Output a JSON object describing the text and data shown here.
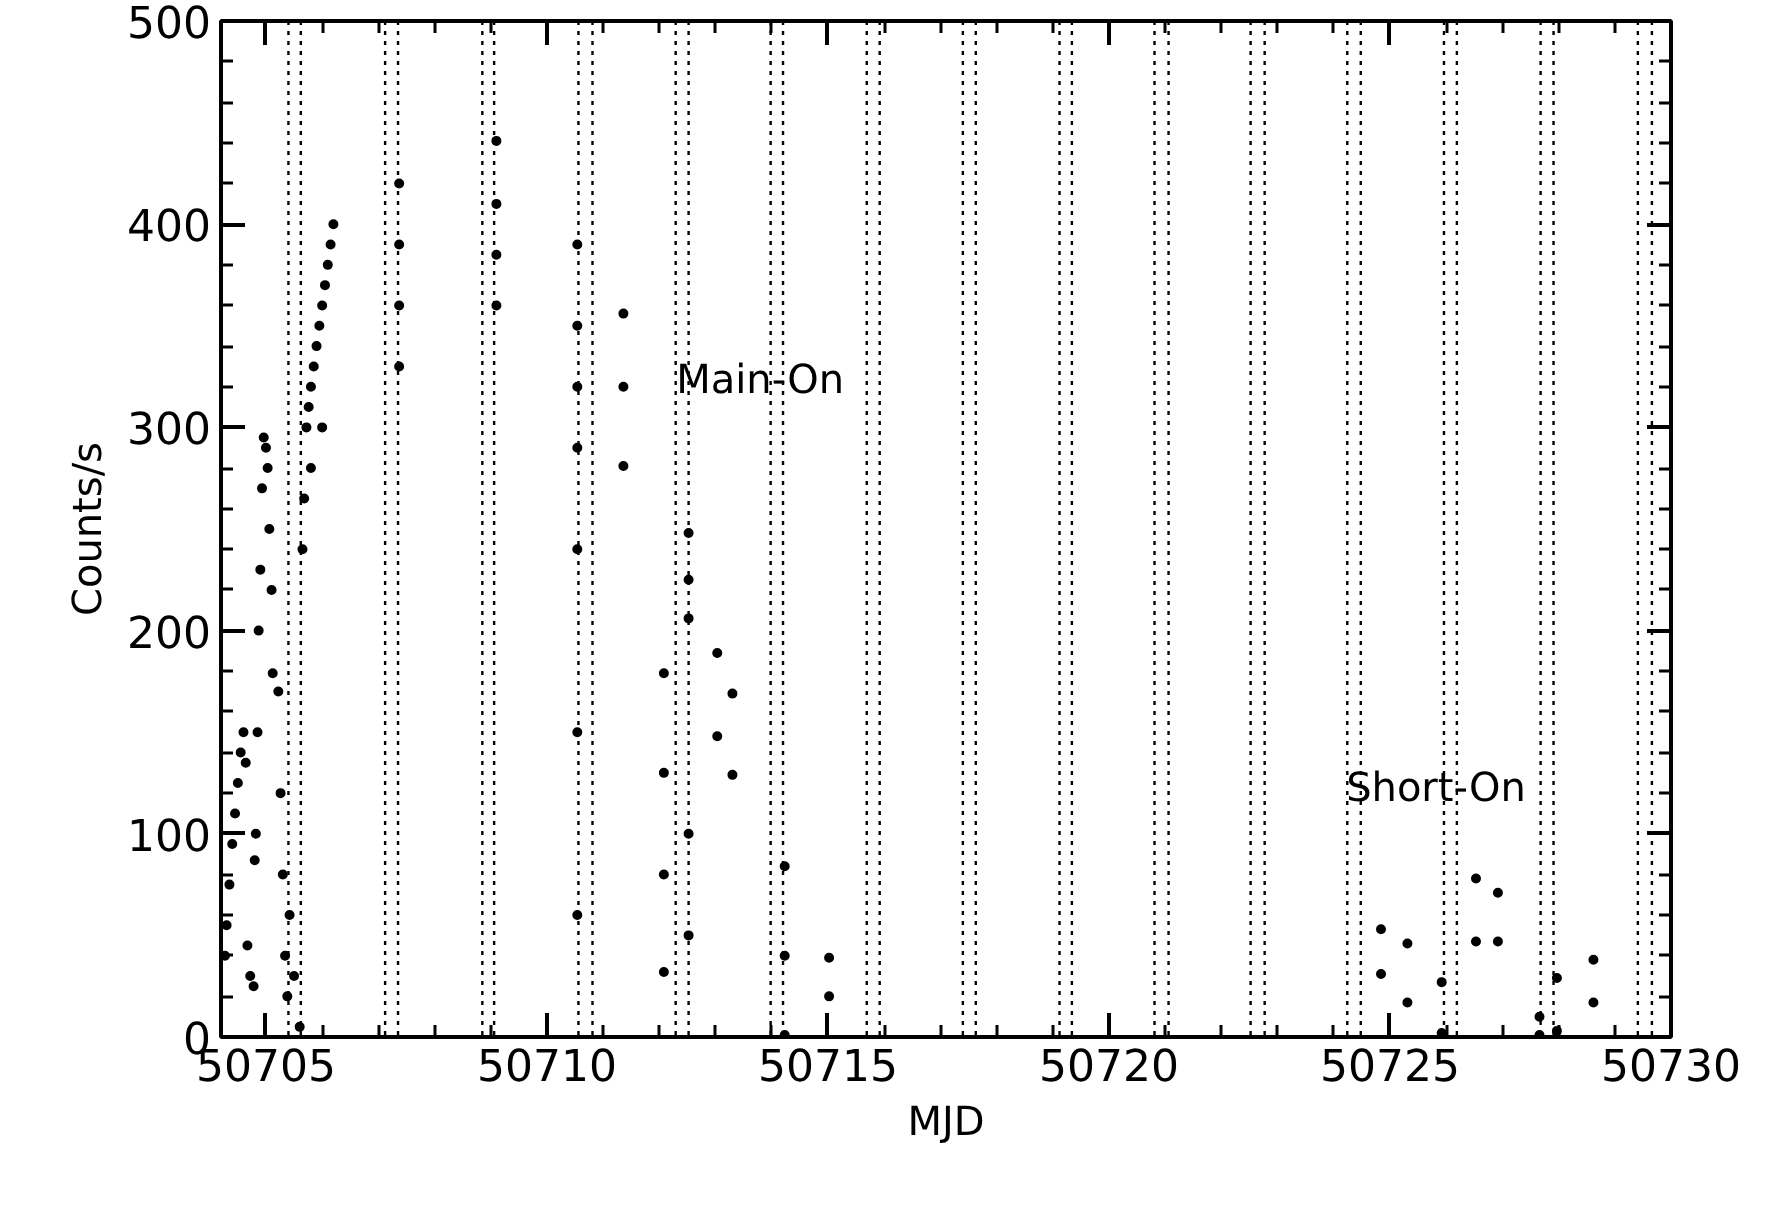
{
  "chart_data": {
    "type": "scatter",
    "xlabel": "MJD",
    "ylabel": "Counts/s",
    "xlim": [
      50704.2,
      50730
    ],
    "ylim": [
      0,
      500
    ],
    "xticks": [
      50705,
      50710,
      50715,
      50720,
      50725,
      50730,
      {
        "value": 50706,
        "label": null
      },
      {
        "value": 50707,
        "label": null
      },
      {
        "value": 50708,
        "label": null
      },
      {
        "value": 50709,
        "label": null
      },
      {
        "value": 50711,
        "label": null
      },
      {
        "value": 50712,
        "label": null
      },
      {
        "value": 50713,
        "label": null
      },
      {
        "value": 50714,
        "label": null
      },
      {
        "value": 50716,
        "label": null
      },
      {
        "value": 50717,
        "label": null
      },
      {
        "value": 50718,
        "label": null
      },
      {
        "value": 50719,
        "label": null
      },
      {
        "value": 50721,
        "label": null
      },
      {
        "value": 50722,
        "label": null
      },
      {
        "value": 50723,
        "label": null
      },
      {
        "value": 50724,
        "label": null
      },
      {
        "value": 50726,
        "label": null
      },
      {
        "value": 50727,
        "label": null
      },
      {
        "value": 50728,
        "label": null
      },
      {
        "value": 50729,
        "label": null
      }
    ],
    "yticks": [
      0,
      100,
      200,
      300,
      400,
      500,
      {
        "value": 20,
        "label": null
      },
      {
        "value": 40,
        "label": null
      },
      {
        "value": 60,
        "label": null
      },
      {
        "value": 80,
        "label": null
      },
      {
        "value": 120,
        "label": null
      },
      {
        "value": 140,
        "label": null
      },
      {
        "value": 160,
        "label": null
      },
      {
        "value": 180,
        "label": null
      },
      {
        "value": 220,
        "label": null
      },
      {
        "value": 240,
        "label": null
      },
      {
        "value": 260,
        "label": null
      },
      {
        "value": 280,
        "label": null
      },
      {
        "value": 320,
        "label": null
      },
      {
        "value": 340,
        "label": null
      },
      {
        "value": 360,
        "label": null
      },
      {
        "value": 380,
        "label": null
      },
      {
        "value": 420,
        "label": null
      },
      {
        "value": 440,
        "label": null
      },
      {
        "value": 460,
        "label": null
      },
      {
        "value": 480,
        "label": null
      }
    ],
    "grid": false,
    "marker": "circle",
    "series": [
      {
        "color": "#000000",
        "x": [
          50704.27,
          50704.3,
          50704.35,
          50704.4,
          50704.45,
          50704.5,
          50704.55,
          50704.6,
          50704.64,
          50704.67,
          50704.72,
          50704.78,
          50704.8,
          50704.82,
          50704.85,
          50704.87,
          50704.9,
          50704.93,
          50704.96,
          50705.0,
          50705.03,
          50705.06,
          50705.1,
          50705.12,
          50705.22,
          50705.26,
          50705.3,
          50705.34,
          50705.38,
          50705.42,
          50705.5,
          50705.6,
          50705.65,
          50705.68,
          50705.72,
          50705.76,
          50705.8,
          50705.85,
          50705.9,
          50705.95,
          50706.0,
          50706.05,
          50706.1,
          50706.15,
          50706.2,
          50705.8,
          50706.0,
          50707.37,
          50707.37,
          50707.37,
          50707.37,
          50709.1,
          50709.1,
          50709.1,
          50709.1,
          50710.54,
          50710.54,
          50710.54,
          50710.54,
          50710.54,
          50710.54,
          50710.54,
          50711.36,
          50711.36,
          50711.36,
          50712.08,
          50712.08,
          50712.08,
          50712.08,
          50712.52,
          50712.52,
          50712.52,
          50712.52,
          50712.52,
          50713.03,
          50713.03,
          50713.3,
          50713.3,
          50714.23,
          50714.23,
          50714.23,
          50715.02,
          50715.02,
          50724.84,
          50724.84,
          50725.31,
          50725.31,
          50725.92,
          50725.92,
          50726.53,
          50726.53,
          50726.92,
          50726.92,
          50727.66,
          50727.66,
          50727.97,
          50727.97,
          50728.62,
          50728.62
        ],
        "values": [
          40,
          55,
          75,
          95,
          110,
          125,
          140,
          150,
          135,
          45,
          30,
          25,
          87,
          100,
          150,
          200,
          230,
          270,
          295,
          290,
          280,
          250,
          220,
          179,
          170,
          120,
          80,
          40,
          20,
          60,
          30,
          5,
          240,
          265,
          300,
          310,
          320,
          330,
          340,
          350,
          360,
          370,
          380,
          390,
          400,
          280,
          300,
          420,
          390,
          360,
          330,
          441,
          410,
          385,
          360,
          390,
          350,
          320,
          290,
          240,
          150,
          60,
          356,
          320,
          281,
          179,
          130,
          80,
          32,
          248,
          225,
          206,
          100,
          50,
          189,
          148,
          169,
          129,
          84,
          40,
          1,
          39,
          20,
          53,
          31,
          46,
          17,
          27,
          2,
          78,
          47,
          71,
          47,
          10,
          1,
          29,
          3,
          38,
          17
        ]
      }
    ],
    "ref_lines": [
      {
        "axis": "x",
        "value": 50705.4,
        "color": "#000000",
        "line_style": "dotted"
      },
      {
        "axis": "x",
        "value": 50705.62,
        "color": "#000000",
        "line_style": "dotted"
      },
      {
        "axis": "x",
        "value": 50707.12,
        "color": "#000000",
        "line_style": "dotted"
      },
      {
        "axis": "x",
        "value": 50707.35,
        "color": "#000000",
        "line_style": "dotted"
      },
      {
        "axis": "x",
        "value": 50708.85,
        "color": "#000000",
        "line_style": "dotted"
      },
      {
        "axis": "x",
        "value": 50709.06,
        "color": "#000000",
        "line_style": "dotted"
      },
      {
        "axis": "x",
        "value": 50710.56,
        "color": "#000000",
        "line_style": "dotted"
      },
      {
        "axis": "x",
        "value": 50710.81,
        "color": "#000000",
        "line_style": "dotted"
      },
      {
        "axis": "x",
        "value": 50712.29,
        "color": "#000000",
        "line_style": "dotted"
      },
      {
        "axis": "x",
        "value": 50712.52,
        "color": "#000000",
        "line_style": "dotted"
      },
      {
        "axis": "x",
        "value": 50713.98,
        "color": "#000000",
        "line_style": "dotted"
      },
      {
        "axis": "x",
        "value": 50714.2,
        "color": "#000000",
        "line_style": "dotted"
      },
      {
        "axis": "x",
        "value": 50715.69,
        "color": "#000000",
        "line_style": "dotted"
      },
      {
        "axis": "x",
        "value": 50715.92,
        "color": "#000000",
        "line_style": "dotted"
      },
      {
        "axis": "x",
        "value": 50717.4,
        "color": "#000000",
        "line_style": "dotted"
      },
      {
        "axis": "x",
        "value": 50717.63,
        "color": "#000000",
        "line_style": "dotted"
      },
      {
        "axis": "x",
        "value": 50719.12,
        "color": "#000000",
        "line_style": "dotted"
      },
      {
        "axis": "x",
        "value": 50719.34,
        "color": "#000000",
        "line_style": "dotted"
      },
      {
        "axis": "x",
        "value": 50720.81,
        "color": "#000000",
        "line_style": "dotted"
      },
      {
        "axis": "x",
        "value": 50721.06,
        "color": "#000000",
        "line_style": "dotted"
      },
      {
        "axis": "x",
        "value": 50722.52,
        "color": "#000000",
        "line_style": "dotted"
      },
      {
        "axis": "x",
        "value": 50722.77,
        "color": "#000000",
        "line_style": "dotted"
      },
      {
        "axis": "x",
        "value": 50724.24,
        "color": "#000000",
        "line_style": "dotted"
      },
      {
        "axis": "x",
        "value": 50724.48,
        "color": "#000000",
        "line_style": "dotted"
      },
      {
        "axis": "x",
        "value": 50725.96,
        "color": "#000000",
        "line_style": "dotted"
      },
      {
        "axis": "x",
        "value": 50726.19,
        "color": "#000000",
        "line_style": "dotted"
      },
      {
        "axis": "x",
        "value": 50727.68,
        "color": "#000000",
        "line_style": "dotted"
      },
      {
        "axis": "x",
        "value": 50727.91,
        "color": "#000000",
        "line_style": "dotted"
      },
      {
        "axis": "x",
        "value": 50729.41,
        "color": "#000000",
        "line_style": "dotted"
      },
      {
        "axis": "x",
        "value": 50729.66,
        "color": "#000000",
        "line_style": "dotted"
      }
    ],
    "annotations": [
      {
        "text": "Main-On",
        "x": 50712.3,
        "y": 324
      },
      {
        "text": "Short-On",
        "x": 50724.22,
        "y": 123
      }
    ]
  }
}
